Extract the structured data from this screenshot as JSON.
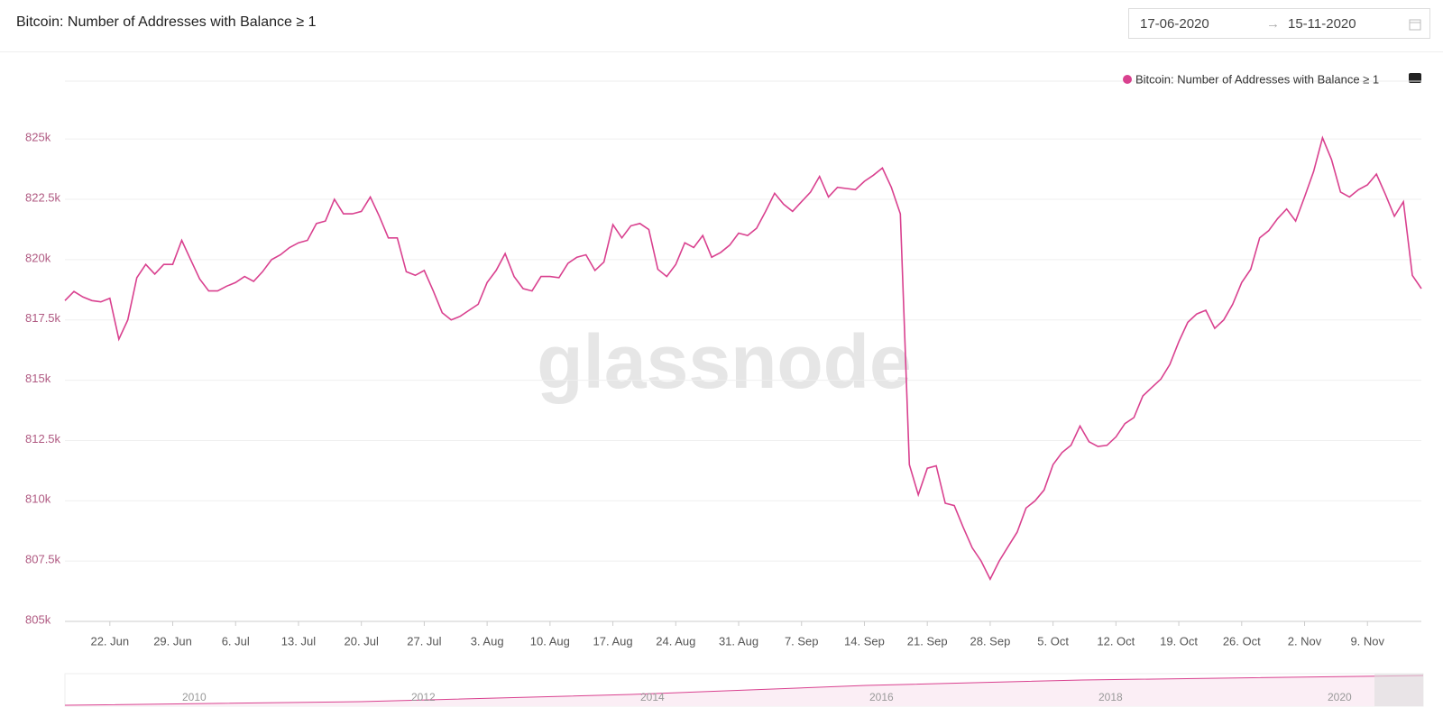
{
  "header": {
    "title": "Bitcoin: Number of Addresses with Balance ≥ 1",
    "date_from": "17-06-2020",
    "date_to": "15-11-2020"
  },
  "watermark": "glassnode",
  "navigator": {
    "labels": [
      "2010",
      "2012",
      "2014",
      "2016",
      "2018",
      "2020"
    ]
  },
  "chart_data": {
    "type": "line",
    "x": [
      "2020-06-17",
      "2020-06-18",
      "2020-06-19",
      "2020-06-20",
      "2020-06-21",
      "2020-06-22",
      "2020-06-23",
      "2020-06-24",
      "2020-06-25",
      "2020-06-26",
      "2020-06-27",
      "2020-06-28",
      "2020-06-29",
      "2020-06-30",
      "2020-07-01",
      "2020-07-02",
      "2020-07-03",
      "2020-07-04",
      "2020-07-05",
      "2020-07-06",
      "2020-07-07",
      "2020-07-08",
      "2020-07-09",
      "2020-07-10",
      "2020-07-11",
      "2020-07-12",
      "2020-07-13",
      "2020-07-14",
      "2020-07-15",
      "2020-07-16",
      "2020-07-17",
      "2020-07-18",
      "2020-07-19",
      "2020-07-20",
      "2020-07-21",
      "2020-07-22",
      "2020-07-23",
      "2020-07-24",
      "2020-07-25",
      "2020-07-26",
      "2020-07-27",
      "2020-07-28",
      "2020-07-29",
      "2020-07-30",
      "2020-07-31",
      "2020-08-01",
      "2020-08-02",
      "2020-08-03",
      "2020-08-04",
      "2020-08-05",
      "2020-08-06",
      "2020-08-07",
      "2020-08-08",
      "2020-08-09",
      "2020-08-10",
      "2020-08-11",
      "2020-08-12",
      "2020-08-13",
      "2020-08-14",
      "2020-08-15",
      "2020-08-16",
      "2020-08-17",
      "2020-08-18",
      "2020-08-19",
      "2020-08-20",
      "2020-08-21",
      "2020-08-22",
      "2020-08-23",
      "2020-08-24",
      "2020-08-25",
      "2020-08-26",
      "2020-08-27",
      "2020-08-28",
      "2020-08-29",
      "2020-08-30",
      "2020-08-31",
      "2020-09-01",
      "2020-09-02",
      "2020-09-03",
      "2020-09-04",
      "2020-09-05",
      "2020-09-06",
      "2020-09-07",
      "2020-09-08",
      "2020-09-09",
      "2020-09-10",
      "2020-09-11",
      "2020-09-12",
      "2020-09-13",
      "2020-09-14",
      "2020-09-15",
      "2020-09-16",
      "2020-09-17",
      "2020-09-18",
      "2020-09-19",
      "2020-09-20",
      "2020-09-21",
      "2020-09-22",
      "2020-09-23",
      "2020-09-24",
      "2020-09-25",
      "2020-09-26",
      "2020-09-27",
      "2020-09-28",
      "2020-09-29",
      "2020-09-30",
      "2020-10-01",
      "2020-10-02",
      "2020-10-03",
      "2020-10-04",
      "2020-10-05",
      "2020-10-06",
      "2020-10-07",
      "2020-10-08",
      "2020-10-09",
      "2020-10-10",
      "2020-10-11",
      "2020-10-12",
      "2020-10-13",
      "2020-10-14",
      "2020-10-15",
      "2020-10-16",
      "2020-10-17",
      "2020-10-18",
      "2020-10-19",
      "2020-10-20",
      "2020-10-21",
      "2020-10-22",
      "2020-10-23",
      "2020-10-24",
      "2020-10-25",
      "2020-10-26",
      "2020-10-27",
      "2020-10-28",
      "2020-10-29",
      "2020-10-30",
      "2020-10-31",
      "2020-11-01",
      "2020-11-02",
      "2020-11-03",
      "2020-11-04",
      "2020-11-05",
      "2020-11-06",
      "2020-11-07",
      "2020-11-08",
      "2020-11-09",
      "2020-11-10",
      "2020-11-11",
      "2020-11-12",
      "2020-11-13",
      "2020-11-14",
      "2020-11-15"
    ],
    "series": [
      {
        "name": "Bitcoin: Number of Addresses with Balance ≥ 1",
        "color": "#d9418f",
        "values": [
          818300,
          818680,
          818450,
          818300,
          818250,
          818400,
          816700,
          817500,
          819250,
          819800,
          819400,
          819800,
          819800,
          820800,
          820000,
          819200,
          818700,
          818700,
          818900,
          819050,
          819300,
          819100,
          819500,
          820000,
          820200,
          820500,
          820700,
          820800,
          821500,
          821600,
          822500,
          821900,
          821900,
          822000,
          822600,
          821800,
          820900,
          820900,
          819500,
          819350,
          819550,
          818700,
          817800,
          817500,
          817650,
          817900,
          818150,
          819050,
          819550,
          820250,
          819300,
          818800,
          818700,
          819300,
          819300,
          819250,
          819850,
          820100,
          820200,
          819550,
          819900,
          821450,
          820900,
          821400,
          821500,
          821250,
          819600,
          819300,
          819800,
          820700,
          820500,
          821000,
          820100,
          820300,
          820600,
          821100,
          821000,
          821300,
          822000,
          822750,
          822300,
          822000,
          822400,
          822800,
          823450,
          822600,
          823000,
          822950,
          822900,
          823250,
          823500,
          823800,
          823000,
          821900,
          811500,
          810250,
          811350,
          811450,
          809900,
          809800,
          808900,
          808050,
          807500,
          806750,
          807500,
          808100,
          808700,
          809700,
          810000,
          810450,
          811500,
          812000,
          812300,
          813100,
          812450,
          812250,
          812300,
          812650,
          813200,
          813450,
          814350,
          814700,
          815050,
          815650,
          816600,
          817400,
          817750,
          817900,
          817150,
          817500,
          818150,
          819050,
          819600,
          820900,
          821200,
          821700,
          822100,
          821600,
          822600,
          823650,
          825050,
          824150,
          822800,
          822600,
          822900,
          823100,
          823550,
          822700,
          821800,
          822400,
          819350,
          818800
        ]
      }
    ],
    "xlim": [
      "2020-06-17",
      "2020-11-15"
    ],
    "xticks": [
      {
        "value": "2020-06-22",
        "label": "22. Jun"
      },
      {
        "value": "2020-06-29",
        "label": "29. Jun"
      },
      {
        "value": "2020-07-06",
        "label": "6. Jul"
      },
      {
        "value": "2020-07-13",
        "label": "13. Jul"
      },
      {
        "value": "2020-07-20",
        "label": "20. Jul"
      },
      {
        "value": "2020-07-27",
        "label": "27. Jul"
      },
      {
        "value": "2020-08-03",
        "label": "3. Aug"
      },
      {
        "value": "2020-08-10",
        "label": "10. Aug"
      },
      {
        "value": "2020-08-17",
        "label": "17. Aug"
      },
      {
        "value": "2020-08-24",
        "label": "24. Aug"
      },
      {
        "value": "2020-08-31",
        "label": "31. Aug"
      },
      {
        "value": "2020-09-07",
        "label": "7. Sep"
      },
      {
        "value": "2020-09-14",
        "label": "14. Sep"
      },
      {
        "value": "2020-09-21",
        "label": "21. Sep"
      },
      {
        "value": "2020-09-28",
        "label": "28. Sep"
      },
      {
        "value": "2020-10-05",
        "label": "5. Oct"
      },
      {
        "value": "2020-10-12",
        "label": "12. Oct"
      },
      {
        "value": "2020-10-19",
        "label": "19. Oct"
      },
      {
        "value": "2020-10-26",
        "label": "26. Oct"
      },
      {
        "value": "2020-11-02",
        "label": "2. Nov"
      },
      {
        "value": "2020-11-09",
        "label": "9. Nov"
      }
    ],
    "ylim": [
      805000,
      827400
    ],
    "yticks": [
      {
        "value": 805000,
        "label": "805k"
      },
      {
        "value": 807500,
        "label": "807.5k"
      },
      {
        "value": 810000,
        "label": "810k"
      },
      {
        "value": 812500,
        "label": "812.5k"
      },
      {
        "value": 815000,
        "label": "815k"
      },
      {
        "value": 817500,
        "label": "817.5k"
      },
      {
        "value": 820000,
        "label": "820k"
      },
      {
        "value": 822500,
        "label": "822.5k"
      },
      {
        "value": 825000,
        "label": "825k"
      }
    ],
    "grid": true
  }
}
